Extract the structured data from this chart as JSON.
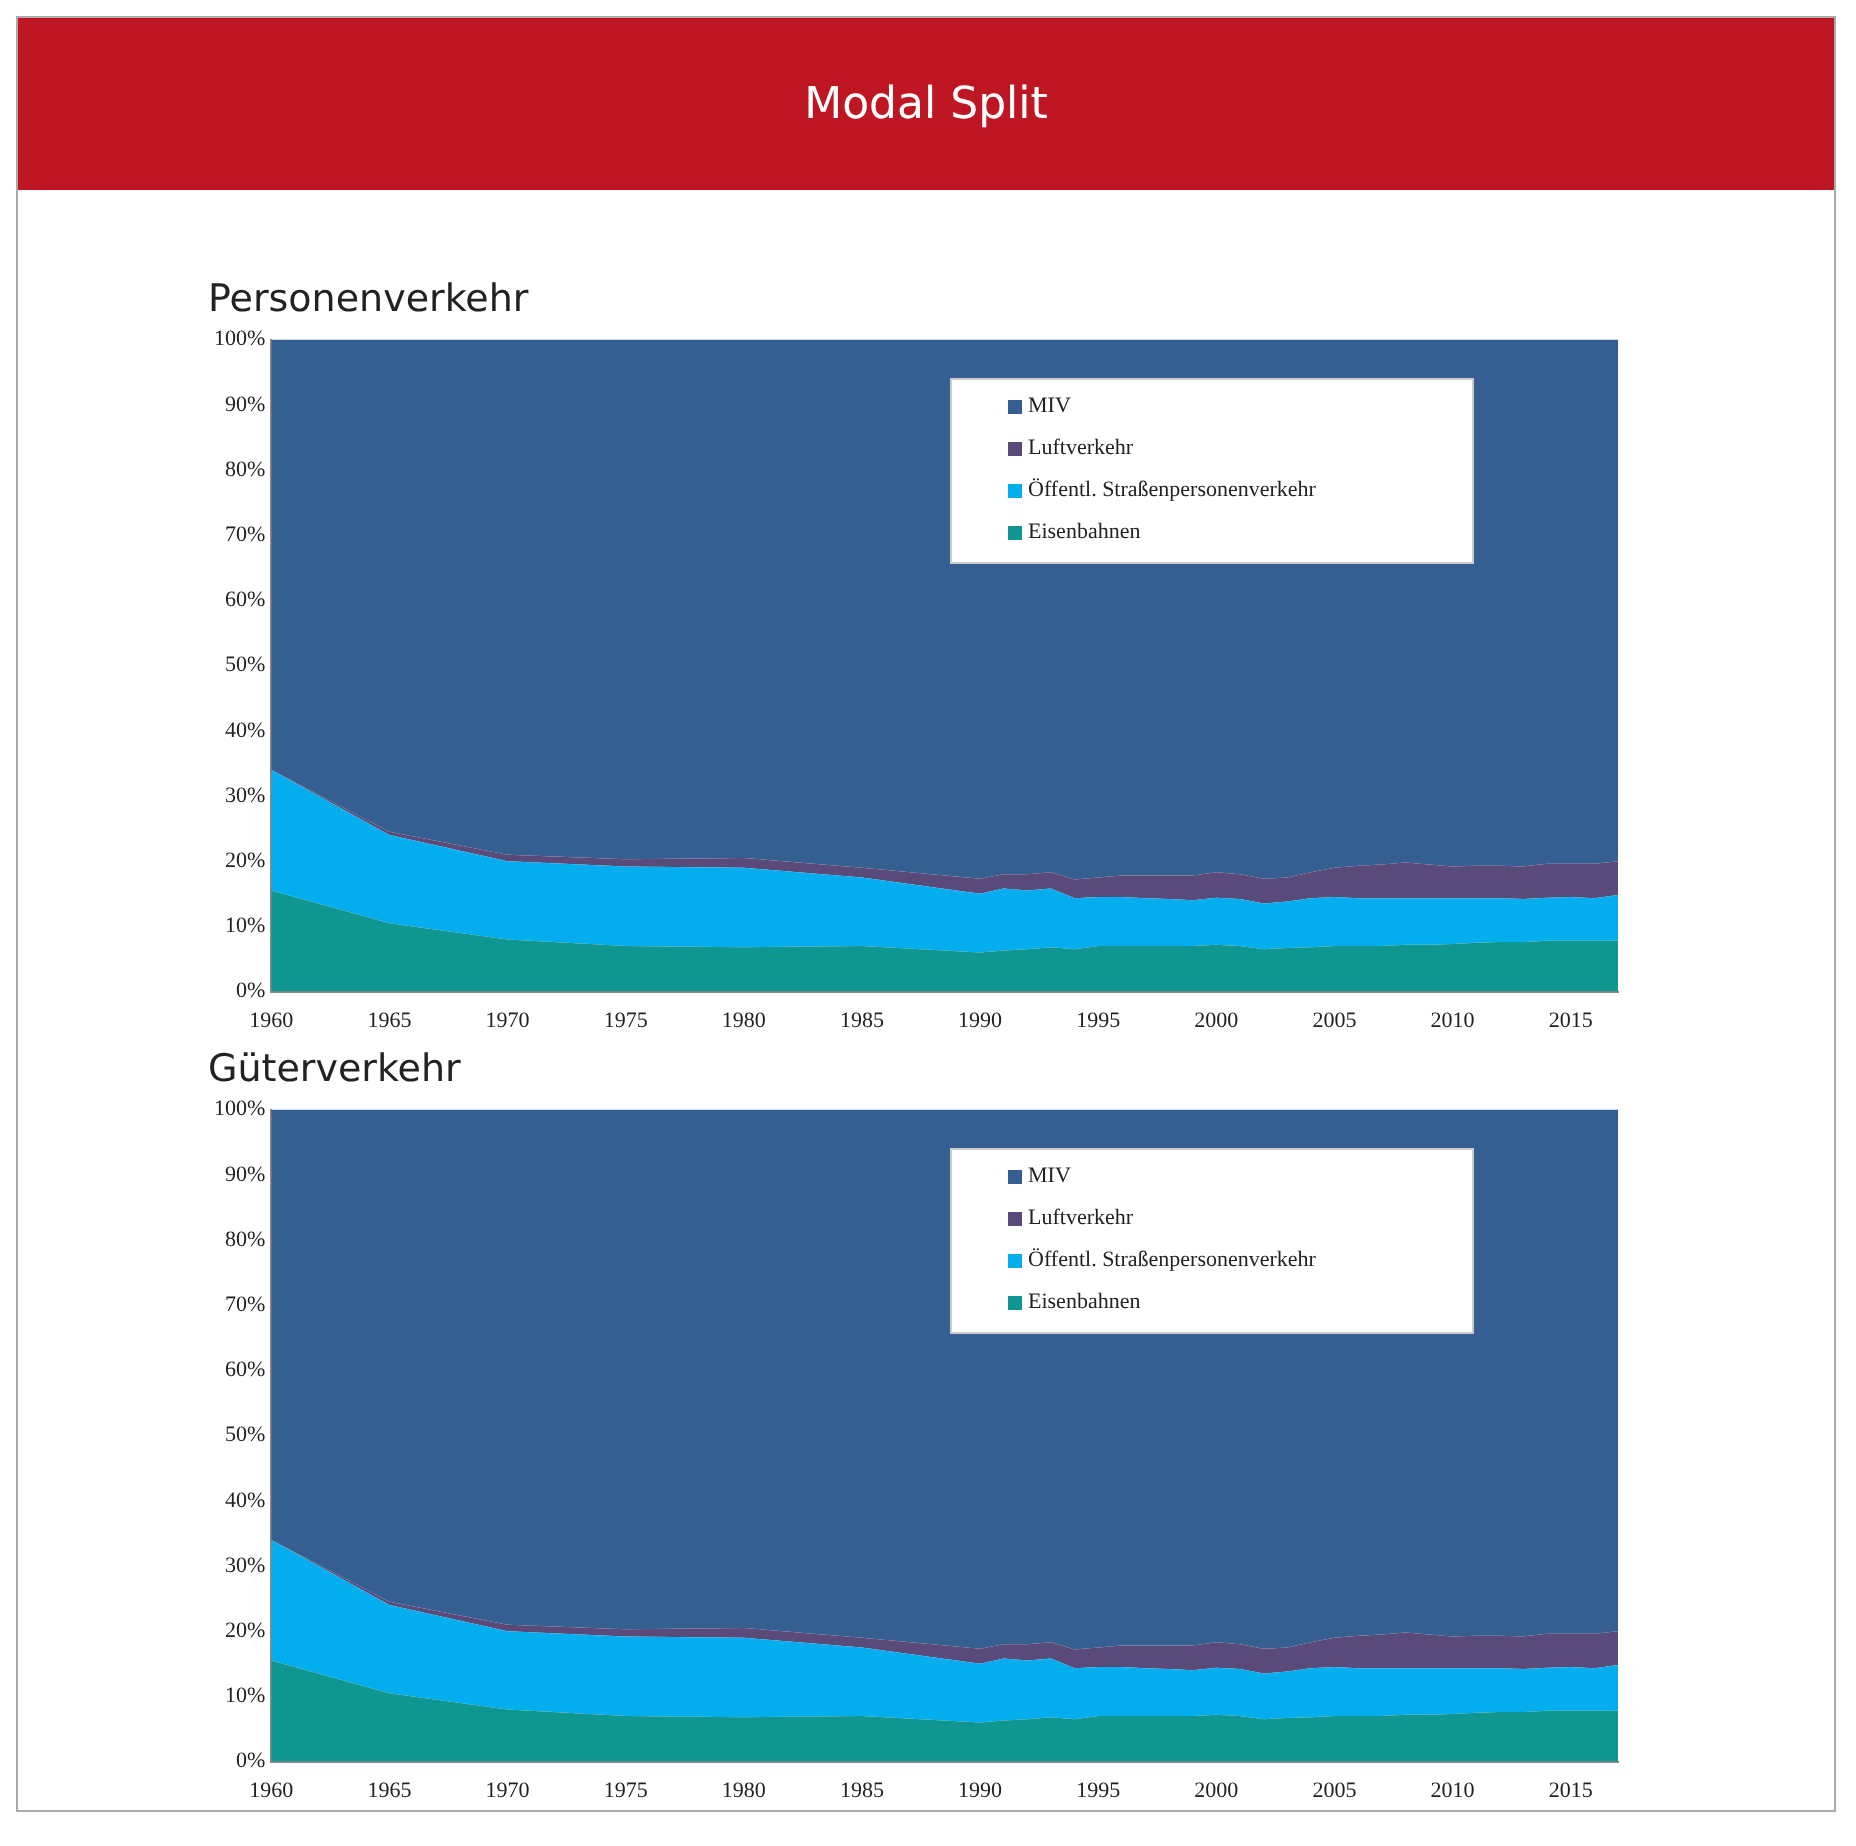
{
  "chart_data": [
    {
      "type": "area",
      "title": "Personenverkehr",
      "annotations": [
        "Modal Split"
      ],
      "stacked": true,
      "x": [
        1960,
        1965,
        1970,
        1975,
        1980,
        1985,
        1990,
        1991,
        1992,
        1993,
        1994,
        1995,
        1996,
        1997,
        1998,
        1999,
        2000,
        2001,
        2002,
        2003,
        2004,
        2005,
        2006,
        2007,
        2008,
        2009,
        2010,
        2011,
        2012,
        2013,
        2014,
        2015,
        2016,
        2017
      ],
      "series": [
        {
          "name": "Eisenbahnen",
          "color": "#0f9690",
          "values": [
            15.5,
            10.5,
            8,
            7,
            6.8,
            7,
            6,
            6.3,
            6.5,
            6.8,
            6.5,
            7,
            7,
            7,
            7,
            7,
            7.2,
            7,
            6.5,
            6.7,
            6.8,
            7,
            7,
            7,
            7.2,
            7.2,
            7.3,
            7.5,
            7.6,
            7.6,
            7.8,
            7.8,
            7.8,
            7.8
          ]
        },
        {
          "name": "Öffentl. Straßenpersonenverkehr",
          "color": "#04aeee",
          "values": [
            18.5,
            13.5,
            12,
            12.2,
            12.2,
            10.5,
            9,
            9.5,
            9,
            9,
            7.8,
            7.5,
            7.5,
            7.3,
            7.2,
            7,
            7.2,
            7.2,
            7,
            7.1,
            7.5,
            7.5,
            7.3,
            7.3,
            7.1,
            7.1,
            7,
            6.8,
            6.7,
            6.6,
            6.6,
            6.7,
            6.5,
            7
          ]
        },
        {
          "name": "Luftverkehr",
          "color": "#5a4a7a",
          "values": [
            0,
            0.5,
            1,
            1.1,
            1.5,
            1.5,
            2.3,
            2.2,
            2.5,
            2.5,
            2.9,
            3,
            3.3,
            3.5,
            3.6,
            3.8,
            3.9,
            3.8,
            3.8,
            3.7,
            4,
            4.5,
            5,
            5.2,
            5.5,
            5.2,
            4.9,
            5,
            5,
            5,
            5.2,
            5.1,
            5.3,
            5.2
          ]
        },
        {
          "name": "MIV",
          "color": "#365f91",
          "values": [
            66,
            75.5,
            79,
            79.7,
            79.5,
            81,
            82.7,
            82,
            82,
            81.7,
            82.8,
            82.5,
            82.2,
            82.2,
            82.2,
            82.2,
            81.7,
            82,
            82.7,
            82.5,
            81.7,
            81,
            80.7,
            80.5,
            80.2,
            80.5,
            80.8,
            80.7,
            80.7,
            80.8,
            80.4,
            80.4,
            80.4,
            80
          ]
        }
      ],
      "xlim": [
        1960,
        2017
      ],
      "xticks": [
        1960,
        1965,
        1970,
        1975,
        1980,
        1985,
        1990,
        1995,
        2000,
        2005,
        2010,
        2015
      ],
      "ylim": [
        0,
        100
      ],
      "yticks": [
        {
          "value": 0,
          "label": "0%"
        },
        {
          "value": 10,
          "label": "10%"
        },
        {
          "value": 20,
          "label": "20%"
        },
        {
          "value": 30,
          "label": "30%"
        },
        {
          "value": 40,
          "label": "40%"
        },
        {
          "value": 50,
          "label": "50%"
        },
        {
          "value": 60,
          "label": "60%"
        },
        {
          "value": 70,
          "label": "70%"
        },
        {
          "value": 80,
          "label": "80%"
        },
        {
          "value": 90,
          "label": "90%"
        },
        {
          "value": 100,
          "label": "100%"
        }
      ],
      "legend": "top right"
    },
    {
      "type": "area",
      "title": "Güterverkehr",
      "stacked": true,
      "x": [
        1960,
        1965,
        1970,
        1975,
        1980,
        1985,
        1990,
        1991,
        1992,
        1993,
        1994,
        1995,
        1996,
        1997,
        1998,
        1999,
        2000,
        2001,
        2002,
        2003,
        2004,
        2005,
        2006,
        2007,
        2008,
        2009,
        2010,
        2011,
        2012,
        2013,
        2014,
        2015,
        2016,
        2017
      ],
      "series": [
        {
          "name": "Eisenbahnen",
          "color": "#0f9690",
          "values": [
            15.5,
            10.5,
            8,
            7,
            6.8,
            7,
            6,
            6.3,
            6.5,
            6.8,
            6.5,
            7,
            7,
            7,
            7,
            7,
            7.2,
            7,
            6.5,
            6.7,
            6.8,
            7,
            7,
            7,
            7.2,
            7.2,
            7.3,
            7.5,
            7.6,
            7.6,
            7.8,
            7.8,
            7.8,
            7.8
          ]
        },
        {
          "name": "Öffentl. Straßenpersonenverkehr",
          "color": "#04aeee",
          "values": [
            18.5,
            13.5,
            12,
            12.2,
            12.2,
            10.5,
            9,
            9.5,
            9,
            9,
            7.8,
            7.5,
            7.5,
            7.3,
            7.2,
            7,
            7.2,
            7.2,
            7,
            7.1,
            7.5,
            7.5,
            7.3,
            7.3,
            7.1,
            7.1,
            7,
            6.8,
            6.7,
            6.6,
            6.6,
            6.7,
            6.5,
            7
          ]
        },
        {
          "name": "Luftverkehr",
          "color": "#5a4a7a",
          "values": [
            0,
            0.5,
            1,
            1.1,
            1.5,
            1.5,
            2.3,
            2.2,
            2.5,
            2.5,
            2.9,
            3,
            3.3,
            3.5,
            3.6,
            3.8,
            3.9,
            3.8,
            3.8,
            3.7,
            4,
            4.5,
            5,
            5.2,
            5.5,
            5.2,
            4.9,
            5,
            5,
            5,
            5.2,
            5.1,
            5.3,
            5.2
          ]
        },
        {
          "name": "MIV",
          "color": "#365f91",
          "values": [
            66,
            75.5,
            79,
            79.7,
            79.5,
            81,
            82.7,
            82,
            82,
            81.7,
            82.8,
            82.5,
            82.2,
            82.2,
            82.2,
            82.2,
            81.7,
            82,
            82.7,
            82.5,
            81.7,
            81,
            80.7,
            80.5,
            80.2,
            80.5,
            80.8,
            80.7,
            80.7,
            80.8,
            80.4,
            80.4,
            80.4,
            80
          ]
        }
      ],
      "xlim": [
        1960,
        2017
      ],
      "xticks": [
        1960,
        1965,
        1970,
        1975,
        1980,
        1985,
        1990,
        1995,
        2000,
        2005,
        2010,
        2015
      ],
      "ylim": [
        0,
        100
      ],
      "yticks": [
        {
          "value": 0,
          "label": "0%"
        },
        {
          "value": 10,
          "label": "10%"
        },
        {
          "value": 20,
          "label": "20%"
        },
        {
          "value": 30,
          "label": "30%"
        },
        {
          "value": 40,
          "label": "40%"
        },
        {
          "value": 50,
          "label": "50%"
        },
        {
          "value": 60,
          "label": "60%"
        },
        {
          "value": 70,
          "label": "70%"
        },
        {
          "value": 80,
          "label": "80%"
        },
        {
          "value": 90,
          "label": "90%"
        },
        {
          "value": 100,
          "label": "100%"
        }
      ],
      "legend": "top right"
    }
  ]
}
